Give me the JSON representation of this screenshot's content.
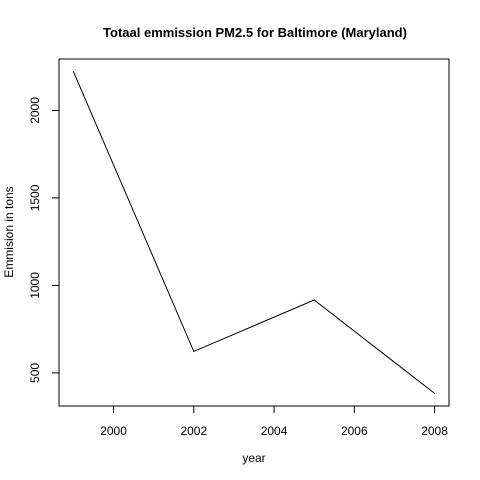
{
  "chart_data": {
    "type": "line",
    "title": "Totaal emmission PM2.5 for Baltimore (Maryland)",
    "xlabel": "year",
    "ylabel": "Emmision in tons",
    "x": [
      1999,
      2002,
      2005,
      2008
    ],
    "series": [
      {
        "values": [
          2222,
          623,
          917,
          383
        ],
        "color": "#000000"
      }
    ],
    "xlim": [
      1998.64,
      2008.36
    ],
    "ylim": [
      311,
      2294
    ],
    "xticks": [
      2000,
      2002,
      2004,
      2006,
      2008
    ],
    "xtick_labels": [
      "2000",
      "2002",
      "2004",
      "2006",
      "2008"
    ],
    "yticks": [
      500,
      1000,
      1500,
      2000
    ],
    "ytick_labels": [
      "500",
      "1000",
      "1500",
      "2000"
    ],
    "grid": false,
    "legend": "none"
  }
}
